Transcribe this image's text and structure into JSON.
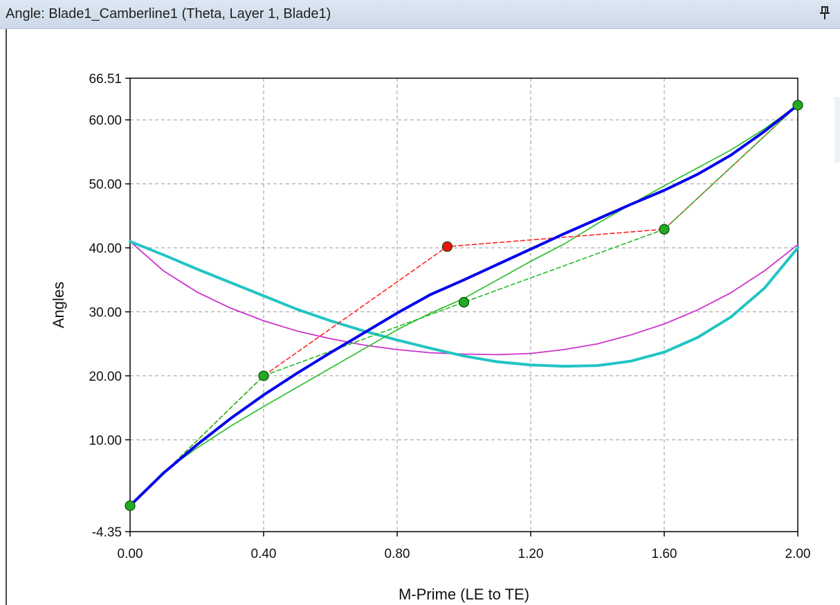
{
  "window": {
    "title": "Angle: Blade1_Camberline1 (Theta, Layer 1, Blade1)",
    "pin_icon": "pin-icon"
  },
  "chart_data": {
    "type": "line",
    "xlabel": "M-Prime (LE to TE)",
    "ylabel": "Angles",
    "xlim": [
      0.0,
      2.0
    ],
    "ylim": [
      -4.35,
      66.51
    ],
    "x_ticks": [
      "0.00",
      "0.40",
      "0.80",
      "1.20",
      "1.60",
      "2.00"
    ],
    "x_tick_values": [
      0.0,
      0.4,
      0.8,
      1.2,
      1.6,
      2.0
    ],
    "y_ticks": [
      "-4.35",
      "10.00",
      "20.00",
      "30.00",
      "40.00",
      "50.00",
      "60.00",
      "66.51"
    ],
    "y_tick_values": [
      -4.35,
      10.0,
      20.0,
      30.0,
      40.0,
      50.0,
      60.0,
      66.51
    ],
    "grid": true,
    "colors": {
      "blue": "#0000ee",
      "cyan": "#22c4c4",
      "magenta": "#cc33cc",
      "green": "#22bb22",
      "red": "#ff2222",
      "point_green": "#22aa22",
      "point_red": "#ee1111"
    },
    "series": [
      {
        "style": "blue-thick",
        "x": [
          0.0,
          0.1,
          0.2,
          0.3,
          0.4,
          0.5,
          0.6,
          0.7,
          0.8,
          0.9,
          1.0,
          1.1,
          1.2,
          1.3,
          1.4,
          1.5,
          1.6,
          1.7,
          1.8,
          1.9,
          2.0
        ],
        "y": [
          -0.3,
          4.8,
          9.2,
          13.3,
          17.0,
          20.4,
          23.6,
          26.7,
          29.8,
          32.7,
          35.0,
          37.4,
          39.8,
          42.2,
          44.5,
          46.8,
          49.0,
          51.5,
          54.5,
          58.2,
          62.3
        ]
      },
      {
        "style": "cyan-thick",
        "x": [
          0.0,
          0.1,
          0.2,
          0.3,
          0.4,
          0.5,
          0.6,
          0.7,
          0.8,
          0.9,
          1.0,
          1.1,
          1.2,
          1.3,
          1.4,
          1.5,
          1.6,
          1.7,
          1.8,
          1.9,
          2.0
        ],
        "y": [
          41.0,
          38.9,
          36.7,
          34.6,
          32.5,
          30.4,
          28.6,
          27.0,
          25.6,
          24.3,
          23.1,
          22.2,
          21.7,
          21.5,
          21.6,
          22.3,
          23.7,
          26.0,
          29.2,
          33.7,
          40.0
        ]
      },
      {
        "style": "magenta-thin",
        "x": [
          0.0,
          0.1,
          0.2,
          0.3,
          0.4,
          0.5,
          0.6,
          0.7,
          0.8,
          0.9,
          1.0,
          1.1,
          1.2,
          1.3,
          1.4,
          1.5,
          1.6,
          1.7,
          1.8,
          1.9,
          2.0
        ],
        "y": [
          41.0,
          36.4,
          33.1,
          30.6,
          28.6,
          27.0,
          25.8,
          24.8,
          24.1,
          23.6,
          23.4,
          23.3,
          23.5,
          24.1,
          25.0,
          26.4,
          28.1,
          30.3,
          33.0,
          36.4,
          40.5
        ]
      },
      {
        "style": "green-thin",
        "x": [
          0.0,
          0.1,
          0.2,
          0.3,
          0.4,
          0.5,
          0.6,
          0.7,
          0.8,
          0.9,
          1.0,
          1.1,
          1.2,
          1.3,
          1.4,
          1.5,
          1.6,
          1.7,
          1.8,
          1.9,
          2.0
        ],
        "y": [
          -0.3,
          5.0,
          8.7,
          12.1,
          15.2,
          18.2,
          21.2,
          24.2,
          27.2,
          29.8,
          32.1,
          35.0,
          37.9,
          40.6,
          43.8,
          46.8,
          49.7,
          52.5,
          55.3,
          58.6,
          62.3
        ]
      },
      {
        "style": "red-dashed",
        "x": [
          0.0,
          0.4,
          0.95,
          1.6,
          2.0
        ],
        "y": [
          -0.3,
          20.0,
          40.2,
          42.9,
          62.3
        ]
      },
      {
        "style": "green-dashed",
        "x": [
          0.0,
          0.4,
          1.0,
          1.6,
          2.0
        ],
        "y": [
          -0.3,
          20.0,
          31.5,
          42.9,
          62.3
        ]
      }
    ],
    "control_points": [
      {
        "x": 0.0,
        "y": -0.3,
        "color": "green"
      },
      {
        "x": 0.4,
        "y": 20.0,
        "color": "green"
      },
      {
        "x": 0.95,
        "y": 40.2,
        "color": "red"
      },
      {
        "x": 1.0,
        "y": 31.5,
        "color": "green"
      },
      {
        "x": 1.6,
        "y": 42.9,
        "color": "green"
      },
      {
        "x": 2.0,
        "y": 62.3,
        "color": "green"
      }
    ]
  }
}
